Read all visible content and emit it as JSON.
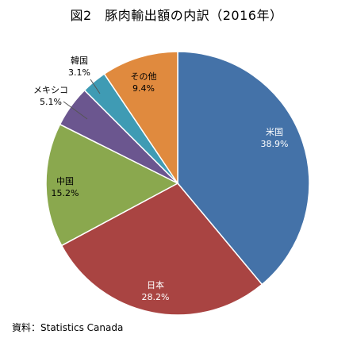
{
  "chart_data": {
    "type": "pie",
    "title": "図2　豚肉輸出額の内訳（2016年）",
    "start_angle_deg": 0,
    "direction": "clockwise",
    "slices": [
      {
        "label": "米国",
        "value": 38.9,
        "value_label": "38.9%",
        "color": "#4472a8",
        "label_color": "#ffffff"
      },
      {
        "label": "日本",
        "value": 28.2,
        "value_label": "28.2%",
        "color": "#a94442",
        "label_color": "#ffffff"
      },
      {
        "label": "中国",
        "value": 15.2,
        "value_label": "15.2%",
        "color": "#8aa84e",
        "label_color": "#000000"
      },
      {
        "label": "メキシコ",
        "value": 5.1,
        "value_label": "5.1%",
        "color": "#6b568f",
        "label_color": "#000000"
      },
      {
        "label": "韓国",
        "value": 3.1,
        "value_label": "3.1%",
        "color": "#3f9bb4",
        "label_color": "#000000"
      },
      {
        "label": "その他",
        "value": 9.4,
        "value_label": "9.4%",
        "color": "#e08a3e",
        "label_color": "#000000"
      }
    ]
  },
  "source": "資料：Statistics Canada"
}
